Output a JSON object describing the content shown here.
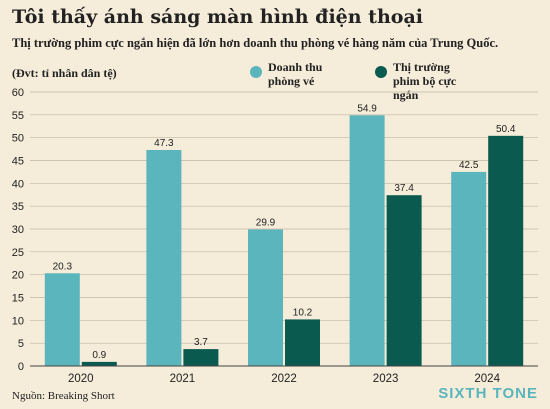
{
  "title": "Tôi thấy ánh sáng màn hình điện thoại",
  "subtitle": "Thị trường phim cực ngắn hiện đã lớn hơn doanh thu phòng vé hàng năm của Trung Quốc.",
  "unit_label": "(Đvt: tỉ nhân dân tệ)",
  "source": "Nguồn: Breaking Short",
  "brand": "SIXTH TONE",
  "colors": {
    "background": "#f5ecd9",
    "box_office": "#5bb5bd",
    "short_drama": "#0a5a50",
    "brand": "#5bb5bd",
    "grid": "#bfb7a5"
  },
  "chart_data": {
    "type": "bar",
    "categories": [
      "2020",
      "2021",
      "2022",
      "2023",
      "2024"
    ],
    "series": [
      {
        "name": "Doanh thu phòng vé",
        "values": [
          20.3,
          47.3,
          29.9,
          54.9,
          42.5
        ]
      },
      {
        "name": "Thị trường phim bộ cực ngắn",
        "values": [
          0.9,
          3.7,
          10.2,
          37.4,
          50.4
        ]
      }
    ],
    "y_ticks": [
      0,
      5,
      10,
      15,
      20,
      25,
      30,
      35,
      40,
      45,
      50,
      55,
      60
    ],
    "ylim": [
      0,
      60
    ],
    "grid": true,
    "legend_position": "top-right"
  }
}
